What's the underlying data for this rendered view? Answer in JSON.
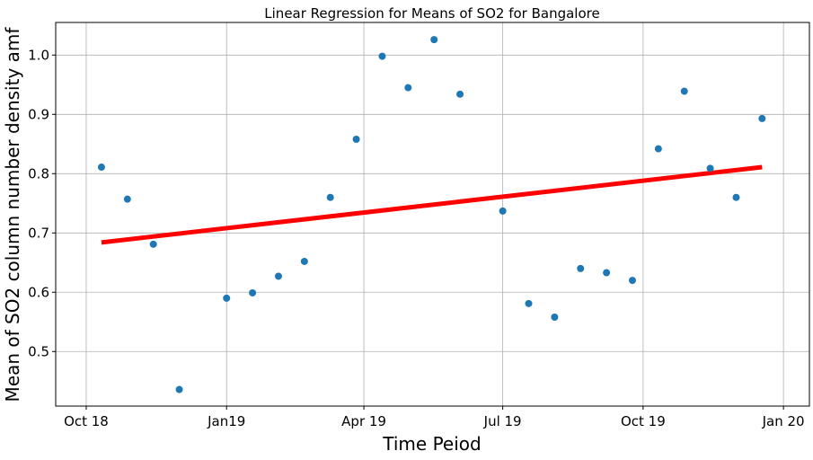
{
  "chart_data": {
    "type": "scatter",
    "title": "Linear Regression for Means of SO2 for Bangalore",
    "xlabel": "Time Peiod",
    "ylabel": "Mean of SO2 column number density amf",
    "x_ticks": [
      {
        "date": "2018-10-01",
        "label": "Oct 18"
      },
      {
        "date": "2019-01-01",
        "label": "Jan19"
      },
      {
        "date": "2019-04-01",
        "label": "Apr 19"
      },
      {
        "date": "2019-07-01",
        "label": "Jul 19"
      },
      {
        "date": "2019-10-01",
        "label": "Oct 19"
      },
      {
        "date": "2020-01-01",
        "label": "Jan 20"
      }
    ],
    "y_ticks": [
      0.5,
      0.6,
      0.7,
      0.8,
      0.9,
      1.0
    ],
    "xlim": [
      "2018-09-11",
      "2020-01-18"
    ],
    "ylim": [
      0.408,
      1.055
    ],
    "grid": true,
    "points": [
      {
        "date": "2018-10-11",
        "value": 0.811
      },
      {
        "date": "2018-10-28",
        "value": 0.757
      },
      {
        "date": "2018-11-14",
        "value": 0.681
      },
      {
        "date": "2018-12-01",
        "value": 0.436
      },
      {
        "date": "2019-01-01",
        "value": 0.59
      },
      {
        "date": "2019-01-18",
        "value": 0.599
      },
      {
        "date": "2019-02-04",
        "value": 0.627
      },
      {
        "date": "2019-02-21",
        "value": 0.652
      },
      {
        "date": "2019-03-10",
        "value": 0.76
      },
      {
        "date": "2019-03-27",
        "value": 0.858
      },
      {
        "date": "2019-04-13",
        "value": 0.998
      },
      {
        "date": "2019-04-30",
        "value": 0.945
      },
      {
        "date": "2019-05-17",
        "value": 1.026
      },
      {
        "date": "2019-06-03",
        "value": 0.934
      },
      {
        "date": "2019-07-01",
        "value": 0.737
      },
      {
        "date": "2019-07-18",
        "value": 0.581
      },
      {
        "date": "2019-08-04",
        "value": 0.558
      },
      {
        "date": "2019-08-21",
        "value": 0.64
      },
      {
        "date": "2019-09-07",
        "value": 0.633
      },
      {
        "date": "2019-09-24",
        "value": 0.62
      },
      {
        "date": "2019-10-11",
        "value": 0.842
      },
      {
        "date": "2019-10-28",
        "value": 0.939
      },
      {
        "date": "2019-11-14",
        "value": 0.809
      },
      {
        "date": "2019-12-01",
        "value": 0.76
      },
      {
        "date": "2019-12-18",
        "value": 0.893
      }
    ],
    "regression_line": {
      "start": {
        "date": "2018-10-11",
        "value": 0.684
      },
      "end": {
        "date": "2019-12-18",
        "value": 0.811
      }
    },
    "colors": {
      "points": "#1f77b4",
      "regression": "#ff0000",
      "grid": "#b0b0b0"
    }
  }
}
